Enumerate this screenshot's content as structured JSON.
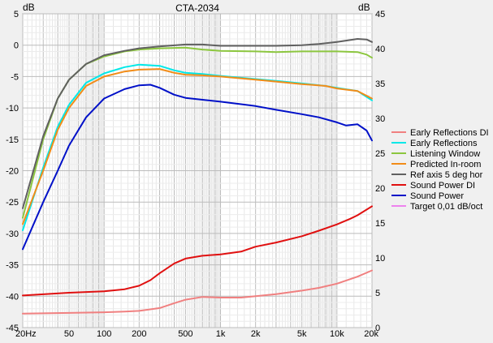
{
  "chart_data": {
    "type": "line",
    "title": "CTA-2034",
    "left_unit": "dB",
    "right_unit": "dB",
    "x_scale": "log",
    "xlim": [
      20,
      20000
    ],
    "ylim_left": [
      -45,
      5
    ],
    "ylim_right": [
      0,
      45
    ],
    "x_ticks": [
      {
        "value": 20,
        "label": "20Hz"
      },
      {
        "value": 50,
        "label": "50"
      },
      {
        "value": 100,
        "label": "100"
      },
      {
        "value": 200,
        "label": "200"
      },
      {
        "value": 500,
        "label": "500"
      },
      {
        "value": 1000,
        "label": "1k"
      },
      {
        "value": 2000,
        "label": "2k"
      },
      {
        "value": 5000,
        "label": "5k"
      },
      {
        "value": 10000,
        "label": "10k"
      },
      {
        "value": 20000,
        "label": "20k"
      }
    ],
    "y_ticks_left": [
      "5",
      "0",
      "-5",
      "-10",
      "-15",
      "-20",
      "-25",
      "-30",
      "-35",
      "-40",
      "-45"
    ],
    "y_ticks_right": [
      "45",
      "40",
      "35",
      "30",
      "25",
      "20",
      "15",
      "10",
      "5",
      "0"
    ],
    "grid": true,
    "legend_position": "right",
    "series": [
      {
        "name": "Early Reflections DI",
        "color": "#f08080",
        "axis": "right",
        "x": [
          20,
          50,
          100,
          150,
          200,
          300,
          400,
          500,
          700,
          1000,
          1500,
          2000,
          3000,
          5000,
          7000,
          10000,
          15000,
          20000
        ],
        "y": [
          2.0,
          2.1,
          2.2,
          2.3,
          2.4,
          2.8,
          3.5,
          4.0,
          4.4,
          4.3,
          4.3,
          4.5,
          4.8,
          5.3,
          5.7,
          6.3,
          7.3,
          8.2
        ]
      },
      {
        "name": "Early Reflections",
        "color": "#00e8e8",
        "axis": "left",
        "x": [
          20,
          30,
          40,
          50,
          70,
          100,
          150,
          200,
          300,
          400,
          500,
          700,
          1000,
          2000,
          3000,
          5000,
          8000,
          10000,
          15000,
          20000
        ],
        "y": [
          -29.5,
          -19.5,
          -13.0,
          -9.5,
          -6.0,
          -4.5,
          -3.5,
          -3.1,
          -3.3,
          -4.0,
          -4.4,
          -4.6,
          -4.9,
          -5.4,
          -5.7,
          -6.1,
          -6.5,
          -6.8,
          -7.3,
          -8.8
        ]
      },
      {
        "name": "Listening Window",
        "color": "#8cc63f",
        "axis": "left",
        "x": [
          20,
          30,
          40,
          50,
          70,
          100,
          150,
          200,
          300,
          500,
          700,
          1000,
          2000,
          3000,
          5000,
          10000,
          15000,
          18000,
          20000
        ],
        "y": [
          -27.5,
          -15.0,
          -8.5,
          -5.5,
          -3.0,
          -1.8,
          -1.0,
          -0.7,
          -0.5,
          -0.4,
          -0.7,
          -0.9,
          -1.0,
          -1.1,
          -1.0,
          -1.0,
          -1.1,
          -1.5,
          -2.0
        ]
      },
      {
        "name": "Predicted In-room",
        "color": "#f28c18",
        "axis": "left",
        "x": [
          20,
          30,
          40,
          50,
          70,
          100,
          150,
          200,
          300,
          400,
          500,
          700,
          1000,
          2000,
          3000,
          5000,
          8000,
          10000,
          15000,
          20000
        ],
        "y": [
          -28.5,
          -20.0,
          -13.5,
          -10.0,
          -6.5,
          -5.0,
          -4.2,
          -3.9,
          -3.8,
          -4.4,
          -4.7,
          -4.8,
          -5.0,
          -5.5,
          -5.8,
          -6.2,
          -6.5,
          -6.9,
          -7.3,
          -8.5
        ]
      },
      {
        "name": "Ref axis 5 deg hor",
        "color": "#606060",
        "axis": "left",
        "x": [
          20,
          30,
          40,
          50,
          70,
          100,
          150,
          200,
          300,
          500,
          700,
          1000,
          2000,
          3000,
          5000,
          7000,
          10000,
          15000,
          18000,
          20000
        ],
        "y": [
          -26.0,
          -14.5,
          -8.5,
          -5.5,
          -3.0,
          -1.6,
          -0.9,
          -0.5,
          -0.2,
          0.1,
          0.1,
          -0.1,
          -0.1,
          -0.1,
          0.0,
          0.2,
          0.5,
          1.0,
          0.9,
          0.5
        ]
      },
      {
        "name": "Sound Power DI",
        "color": "#e01010",
        "axis": "right",
        "x": [
          20,
          50,
          100,
          150,
          200,
          250,
          300,
          400,
          500,
          700,
          1000,
          1500,
          2000,
          3000,
          5000,
          7000,
          10000,
          13000,
          15000,
          20000
        ],
        "y": [
          4.6,
          5.0,
          5.2,
          5.5,
          6.0,
          6.8,
          7.8,
          9.2,
          9.9,
          10.3,
          10.5,
          10.9,
          11.6,
          12.2,
          13.1,
          13.9,
          14.8,
          15.6,
          16.1,
          17.4
        ]
      },
      {
        "name": "Sound Power",
        "color": "#0010c8",
        "axis": "left",
        "x": [
          20,
          30,
          40,
          50,
          70,
          100,
          150,
          200,
          250,
          300,
          400,
          500,
          700,
          1000,
          1500,
          2000,
          3000,
          5000,
          7000,
          10000,
          12000,
          15000,
          18000,
          20000
        ],
        "y": [
          -32.5,
          -25.0,
          -20.0,
          -16.0,
          -11.5,
          -8.5,
          -7.0,
          -6.4,
          -6.3,
          -6.8,
          -7.9,
          -8.4,
          -8.7,
          -9.0,
          -9.4,
          -9.7,
          -10.3,
          -11.0,
          -11.5,
          -12.3,
          -12.8,
          -12.6,
          -13.6,
          -15.2
        ]
      },
      {
        "name": "Target 0,01 dB/oct",
        "color": "#ee82ee",
        "axis": "left",
        "x": [],
        "y": []
      }
    ]
  }
}
